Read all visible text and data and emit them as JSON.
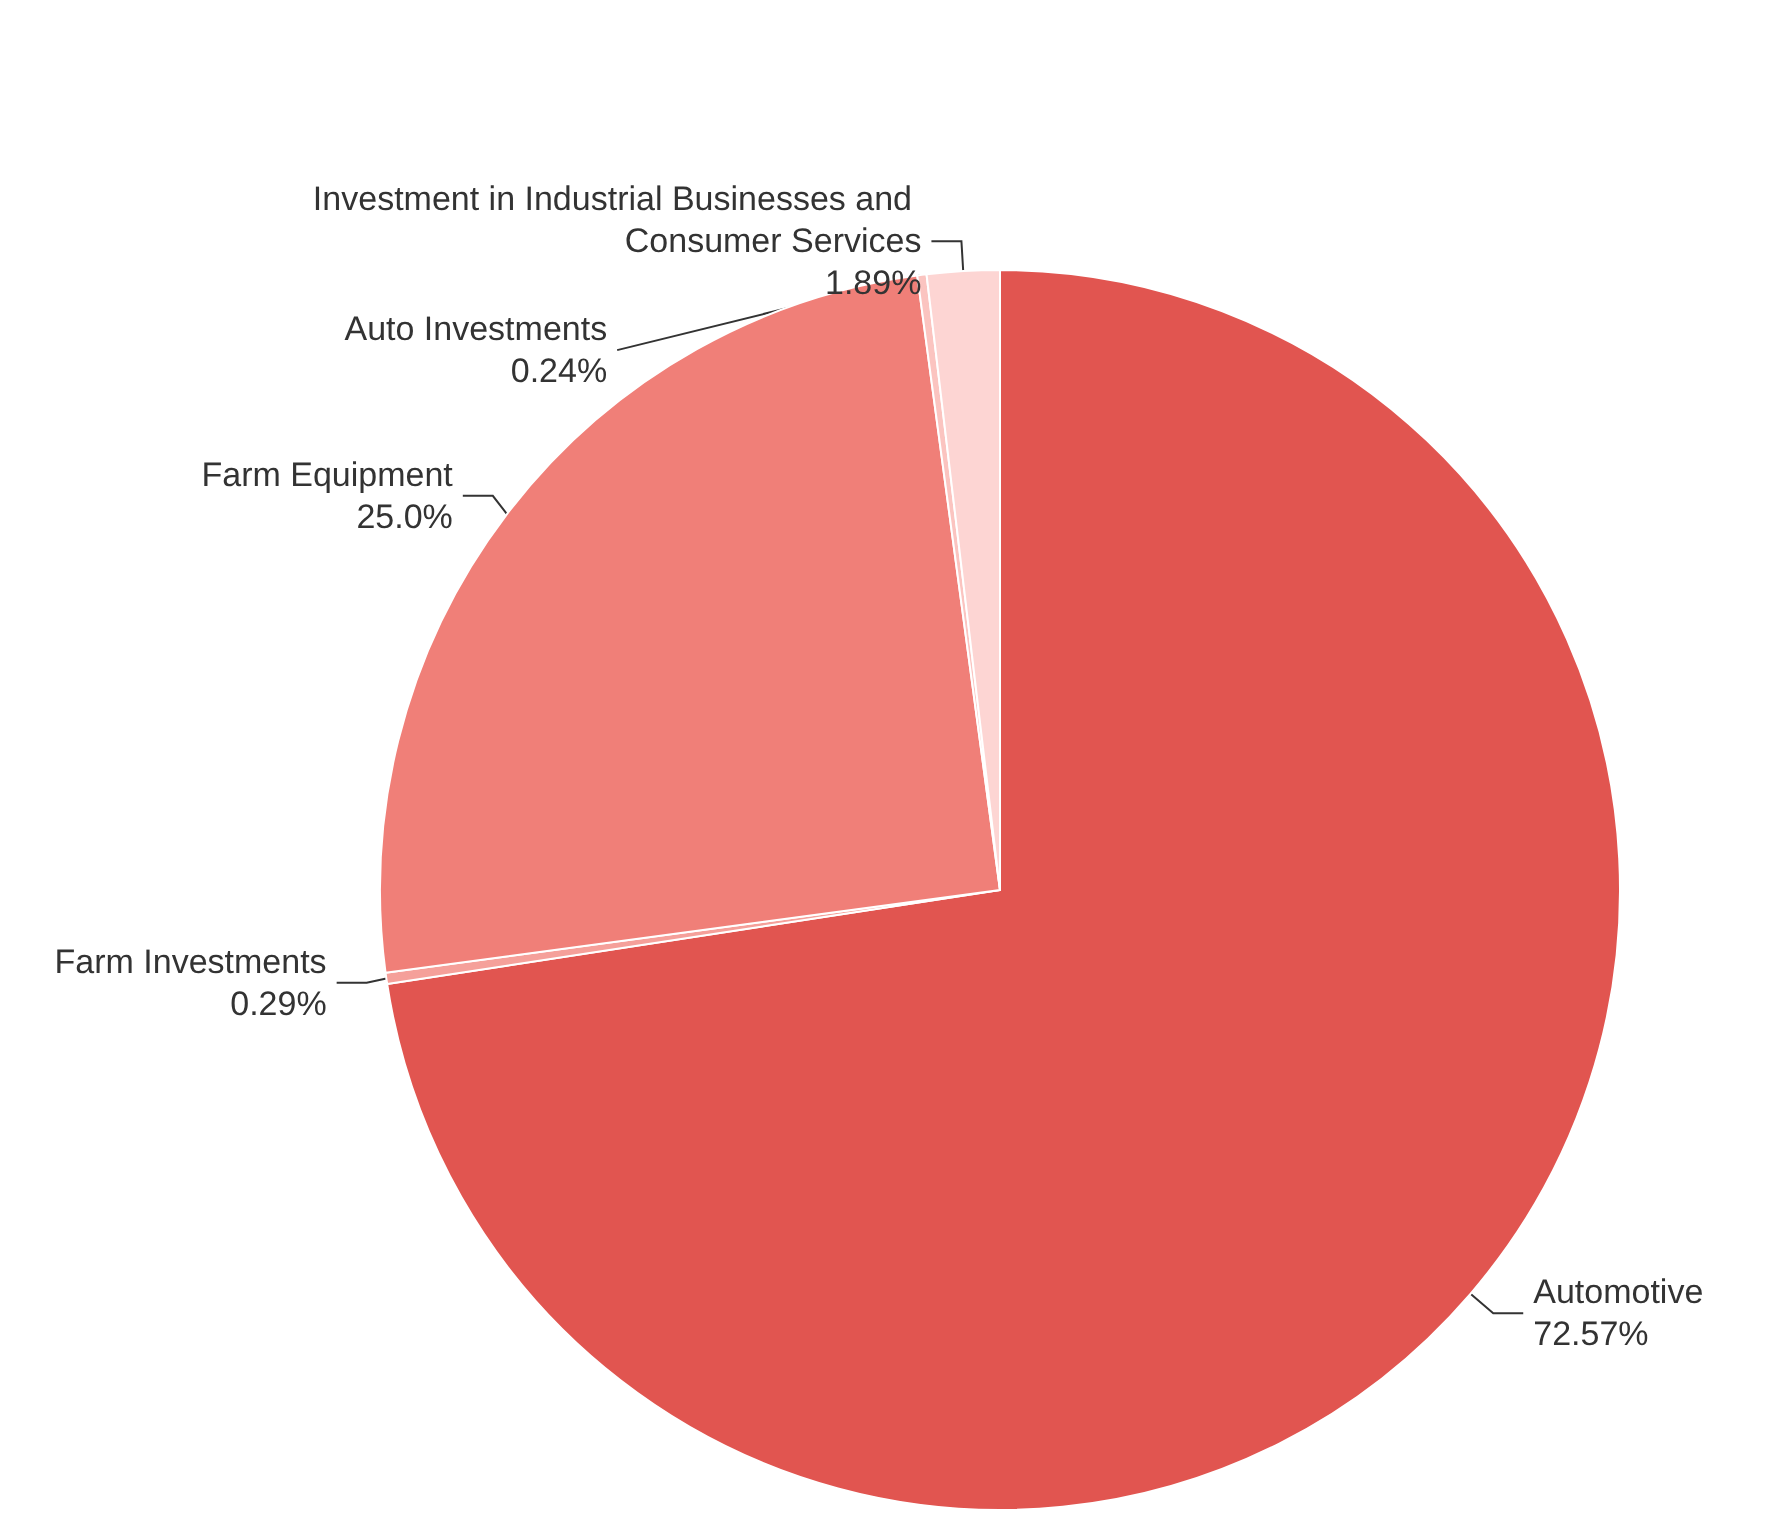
{
  "chart_data": {
    "type": "pie",
    "categories": [
      "Automotive",
      "Farm Investments",
      "Farm Equipment",
      "Auto Investments",
      "Investment in Industrial Businesses and Consumer Services"
    ],
    "values": [
      72.57,
      0.29,
      25.0,
      0.24,
      1.89
    ],
    "value_labels": [
      "72.57%",
      "0.29%",
      "25.0%",
      "0.24%",
      "1.89%"
    ],
    "colors": [
      "#e15550",
      "#f5a09a",
      "#f07f78",
      "#fbc4c0",
      "#fdd5d3"
    ],
    "legend": false
  }
}
